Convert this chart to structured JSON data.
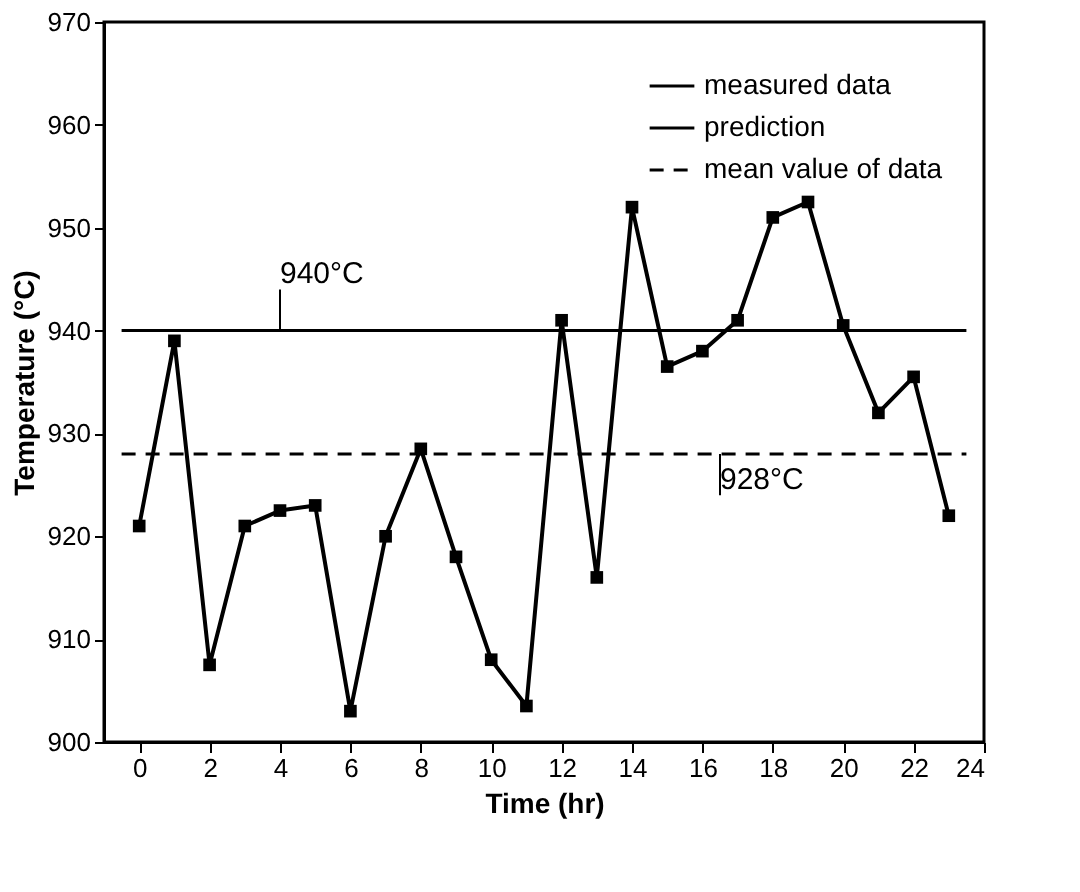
{
  "chart_data": {
    "type": "line",
    "xlabel": "Time (hr)",
    "ylabel": "Temperature (°C)",
    "x": [
      0,
      1,
      2,
      3,
      4,
      5,
      6,
      7,
      8,
      9,
      10,
      11,
      12,
      13,
      14,
      15,
      16,
      17,
      18,
      19,
      20,
      21,
      22,
      23
    ],
    "series": [
      {
        "name": "measured data",
        "color": "#000000",
        "values": [
          921,
          939,
          907.5,
          921,
          922.5,
          923,
          903,
          920,
          928.5,
          918,
          908,
          903.5,
          941,
          916,
          952,
          936.5,
          938,
          941,
          951,
          952.5,
          940.5,
          932,
          935.5,
          922
        ]
      }
    ],
    "marker": "square",
    "ref_lines": [
      {
        "axis": "y",
        "value": 940,
        "label": "prediction",
        "color": "#000000",
        "line_style": "solid"
      },
      {
        "axis": "y",
        "value": 928,
        "label": "mean value of data",
        "color": "#000000",
        "line_style": "dashed"
      }
    ],
    "annotations": [
      {
        "text": "940°C",
        "x": 4,
        "y": 940
      },
      {
        "text": "928°C",
        "x": 16.5,
        "y": 928
      }
    ],
    "xlim": [
      -1,
      24
    ],
    "xticks": [
      0,
      2,
      4,
      6,
      8,
      10,
      12,
      14,
      16,
      18,
      20,
      22,
      24
    ],
    "ylim": [
      900,
      970
    ],
    "yticks": [
      900,
      910,
      920,
      930,
      940,
      950,
      960,
      970
    ],
    "grid": false,
    "legend": "top right"
  }
}
